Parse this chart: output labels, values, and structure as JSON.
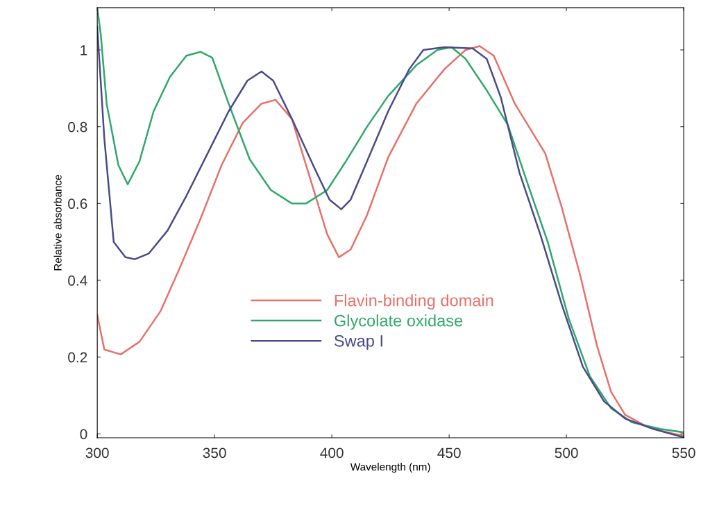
{
  "chart_data": {
    "type": "line",
    "xlabel": "Wavelength (nm)",
    "ylabel": "Relative absorbance",
    "xlim": [
      300,
      550
    ],
    "ylim": [
      -0.01,
      1.11
    ],
    "xticks": [
      300,
      350,
      400,
      450,
      500,
      550
    ],
    "yticks": [
      0,
      0.2,
      0.4,
      0.6,
      0.8,
      1
    ],
    "grid": false,
    "legend": "bottom",
    "marker": "none",
    "line_style": "solid",
    "series": [
      {
        "name": "Flavin-binding domain",
        "color": "#e8706a",
        "x": [
          300,
          303,
          310,
          318,
          327,
          335,
          344,
          353,
          362,
          370,
          376,
          383,
          392,
          398,
          403,
          408,
          415,
          424,
          436,
          448,
          457,
          463,
          469,
          478,
          485,
          491,
          498,
          506,
          513,
          519,
          525,
          534,
          543,
          550
        ],
        "values": [
          0.31,
          0.22,
          0.207,
          0.24,
          0.32,
          0.43,
          0.56,
          0.7,
          0.81,
          0.86,
          0.87,
          0.82,
          0.64,
          0.52,
          0.46,
          0.48,
          0.57,
          0.72,
          0.86,
          0.95,
          1.0,
          1.01,
          0.985,
          0.86,
          0.79,
          0.73,
          0.59,
          0.41,
          0.23,
          0.11,
          0.05,
          0.02,
          0.004,
          -0.005
        ]
      },
      {
        "name": "Glycolate oxidase",
        "color": "#2ea86b",
        "x": [
          300,
          301.5,
          304,
          309,
          313,
          318,
          324,
          331,
          338,
          344,
          349,
          356,
          365,
          374,
          383,
          389,
          398,
          406,
          415,
          424,
          436,
          445,
          451,
          457,
          466,
          475,
          483,
          492,
          501,
          510,
          519,
          528,
          540,
          550
        ],
        "values": [
          1.11,
          1.04,
          0.86,
          0.7,
          0.65,
          0.71,
          0.84,
          0.93,
          0.985,
          0.995,
          0.98,
          0.86,
          0.715,
          0.635,
          0.6,
          0.6,
          0.635,
          0.71,
          0.8,
          0.88,
          0.96,
          1.0,
          1.007,
          0.977,
          0.895,
          0.805,
          0.66,
          0.5,
          0.3,
          0.15,
          0.067,
          0.03,
          0.013,
          0.004
        ]
      },
      {
        "name": "Swap I",
        "color": "#4a4a8a",
        "x": [
          300,
          303,
          307,
          312,
          316,
          322,
          330,
          338,
          347,
          356,
          364,
          370,
          375,
          383,
          392,
          399,
          404,
          408,
          415,
          424,
          433,
          439,
          448,
          460,
          466,
          472,
          480,
          489,
          498,
          507,
          516,
          525,
          537,
          550
        ],
        "values": [
          1.06,
          0.77,
          0.5,
          0.46,
          0.455,
          0.47,
          0.53,
          0.62,
          0.73,
          0.84,
          0.92,
          0.944,
          0.92,
          0.82,
          0.7,
          0.61,
          0.585,
          0.61,
          0.71,
          0.84,
          0.95,
          1.0,
          1.007,
          1.004,
          0.977,
          0.877,
          0.68,
          0.517,
          0.337,
          0.175,
          0.085,
          0.04,
          0.013,
          -0.009
        ]
      }
    ]
  }
}
